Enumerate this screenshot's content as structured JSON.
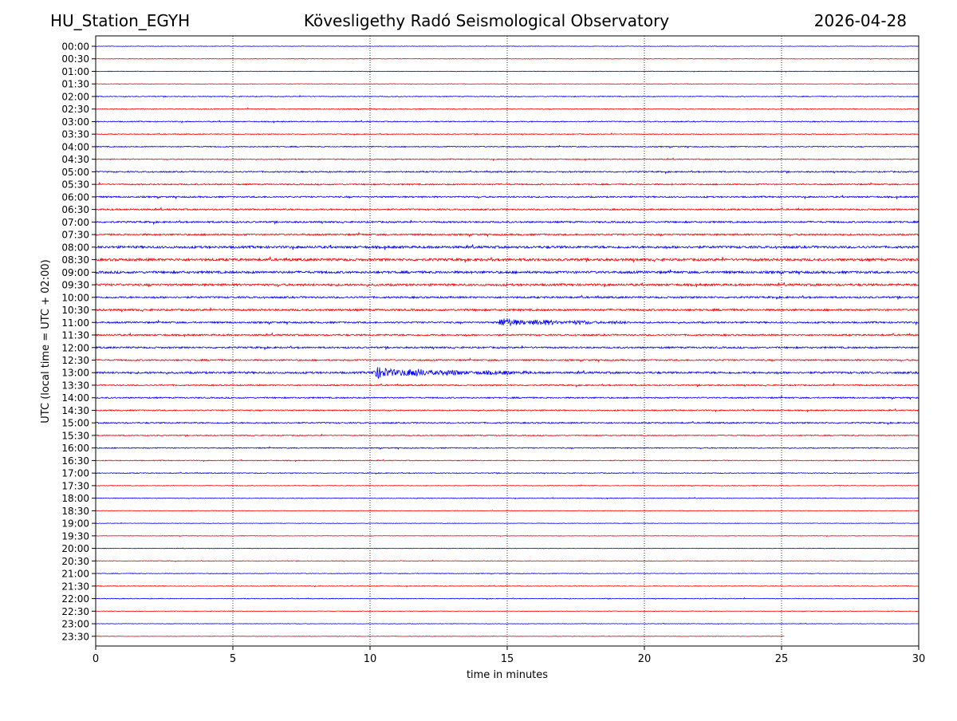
{
  "header": {
    "station": "HU_Station_EGYH",
    "observatory": "Kövesligethy Radó Seismological Observatory",
    "date": "2026-04-28"
  },
  "chart_data": {
    "type": "line",
    "title": "Kövesligethy Radó Seismological Observatory",
    "xlabel": "time in minutes",
    "ylabel": "UTC (local time = UTC + 02:00)",
    "xlim": [
      0,
      30
    ],
    "xticks": [
      "0",
      "5",
      "10",
      "15",
      "20",
      "25",
      "30"
    ],
    "vertical_gridlines_minutes": [
      5,
      10,
      15,
      20,
      25
    ],
    "rows": [
      "00:00",
      "00:30",
      "01:00",
      "01:30",
      "02:00",
      "02:30",
      "03:00",
      "03:30",
      "04:00",
      "04:30",
      "05:00",
      "05:30",
      "06:00",
      "06:30",
      "07:00",
      "07:30",
      "08:00",
      "08:30",
      "09:00",
      "09:30",
      "10:00",
      "10:30",
      "11:00",
      "11:30",
      "12:00",
      "12:30",
      "13:00",
      "13:30",
      "14:00",
      "14:30",
      "15:00",
      "15:30",
      "16:00",
      "16:30",
      "17:00",
      "17:30",
      "18:00",
      "18:30",
      "19:00",
      "19:30",
      "20:00",
      "20:30",
      "21:00",
      "21:30",
      "22:00",
      "22:30",
      "23:00",
      "23:30"
    ],
    "colors": [
      "#0000ff",
      "#ff0000"
    ],
    "noise_level": [
      0.3,
      0.3,
      0.3,
      0.3,
      0.5,
      0.5,
      0.6,
      0.5,
      0.6,
      0.6,
      0.8,
      0.8,
      0.9,
      0.9,
      1.0,
      1.0,
      1.4,
      1.5,
      1.4,
      1.3,
      1.1,
      1.2,
      1.0,
      1.0,
      1.0,
      0.9,
      1.2,
      0.8,
      0.8,
      0.7,
      0.8,
      0.6,
      0.6,
      0.5,
      0.5,
      0.4,
      0.4,
      0.3,
      0.3,
      0.3,
      0.3,
      0.4,
      0.4,
      0.4,
      0.4,
      0.3,
      0.3,
      0.3
    ],
    "events": [
      {
        "row": "11:00",
        "start_min": 14.7,
        "end_min": 19.5,
        "amplitude": 5.5
      },
      {
        "row": "13:00",
        "start_min": 10.1,
        "end_min": 14.8,
        "amplitude": 7.5
      },
      {
        "row": "13:00",
        "start_min": 14.8,
        "end_min": 17.5,
        "amplitude": 3.0
      }
    ],
    "last_row_end_min": 25.1
  }
}
